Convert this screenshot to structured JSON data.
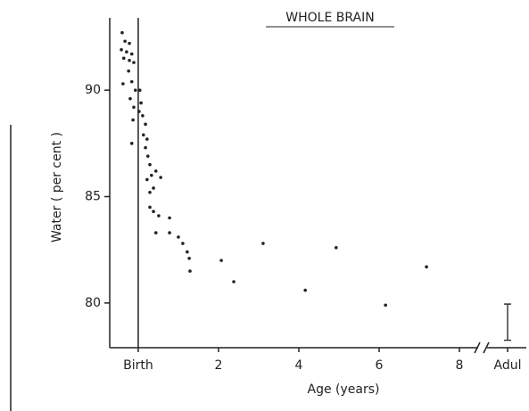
{
  "chart_data": {
    "type": "scatter",
    "title": "WHOLE BRAIN",
    "xlabel": "Age (years)",
    "ylabel": "Water ( per cent )",
    "color": "#222222",
    "x": [
      -0.4,
      -0.33,
      -0.22,
      -0.42,
      -0.29,
      -0.16,
      -0.36,
      -0.22,
      -0.11,
      -0.24,
      -0.38,
      -0.16,
      -0.07,
      -0.2,
      -0.11,
      -0.13,
      -0.16,
      0.04,
      0.07,
      0.02,
      0.11,
      0.18,
      0.13,
      0.22,
      0.18,
      0.24,
      0.29,
      0.33,
      0.22,
      0.44,
      0.56,
      0.38,
      0.29,
      0.29,
      0.38,
      0.51,
      0.78,
      0.44,
      0.78,
      1.0,
      1.11,
      1.22,
      1.27,
      1.29,
      2.07,
      2.38,
      3.11,
      4.16,
      4.93,
      6.16,
      7.18
    ],
    "values": [
      92.7,
      92.3,
      92.2,
      91.9,
      91.8,
      91.7,
      91.5,
      91.4,
      91.3,
      90.9,
      90.3,
      90.4,
      90.0,
      89.6,
      89.2,
      88.6,
      87.5,
      90.0,
      89.4,
      89.0,
      88.8,
      88.4,
      87.9,
      87.7,
      87.3,
      86.9,
      86.5,
      86.0,
      85.8,
      86.2,
      85.9,
      85.4,
      85.2,
      84.5,
      84.3,
      84.1,
      84.0,
      83.3,
      83.3,
      83.1,
      82.8,
      82.4,
      82.1,
      81.5,
      82.0,
      81.0,
      82.8,
      80.6,
      82.6,
      79.9,
      81.7
    ],
    "adult": {
      "x": 9.2,
      "value": 79.1,
      "error": 0.85
    },
    "xlim": [
      -0.71,
      9.6
    ],
    "ylim": [
      77.9,
      93.4
    ],
    "xticks": [
      {
        "value": 0,
        "label": "Birth"
      },
      2,
      4,
      6,
      8,
      {
        "value": 9.2,
        "label": "Adul"
      }
    ],
    "yticks": [
      80,
      85,
      90
    ]
  }
}
